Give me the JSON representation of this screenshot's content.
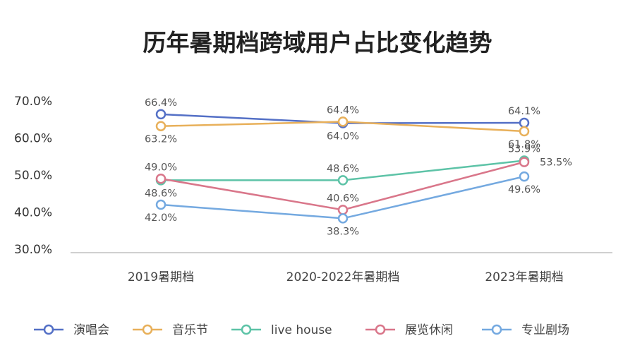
{
  "chart_data": {
    "type": "line",
    "title": "历年暑期档跨域用户占比变化趋势",
    "xlabel": "",
    "ylabel": "",
    "categories": [
      "2019暑期档",
      "2020-2022年暑期档",
      "2023年暑期档"
    ],
    "ylim": [
      30,
      70
    ],
    "yticks": [
      "70.0%",
      "60.0%",
      "50.0%",
      "40.0%",
      "30.0%"
    ],
    "ytick_values": [
      70,
      60,
      50,
      40,
      30
    ],
    "grid": false,
    "legend_position": "bottom",
    "series": [
      {
        "name": "演唱会",
        "color": "#5470c6",
        "values": [
          66.4,
          64.0,
          64.1
        ],
        "labels": [
          "66.4%",
          "64.0%",
          "64.1%"
        ],
        "label_pos": [
          "above",
          "below",
          "above"
        ]
      },
      {
        "name": "音乐节",
        "color": "#e8b05a",
        "values": [
          63.2,
          64.4,
          61.8
        ],
        "labels": [
          "63.2%",
          "64.4%",
          "61.8%"
        ],
        "label_pos": [
          "below",
          "above",
          "below"
        ]
      },
      {
        "name": "live house",
        "color": "#5dc3a7",
        "values": [
          48.6,
          48.6,
          53.9
        ],
        "labels": [
          "48.6%",
          "48.6%",
          "53.9%"
        ],
        "label_pos": [
          "below",
          "above",
          "above"
        ]
      },
      {
        "name": "展览休闲",
        "color": "#d9768a",
        "values": [
          49.0,
          40.6,
          53.5
        ],
        "labels": [
          "49.0%",
          "40.6%",
          "53.5%"
        ],
        "label_pos": [
          "above",
          "above",
          "right"
        ]
      },
      {
        "name": "专业剧场",
        "color": "#74a9e0",
        "values": [
          42.0,
          38.3,
          49.6
        ],
        "labels": [
          "42.0%",
          "38.3%",
          "49.6%"
        ],
        "label_pos": [
          "below",
          "below",
          "below"
        ]
      }
    ]
  }
}
